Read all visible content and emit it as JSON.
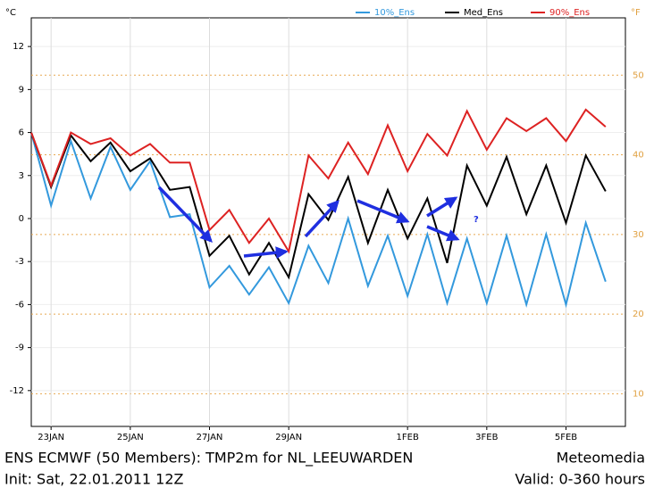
{
  "chart_data": {
    "type": "line",
    "title": "ENS ECMWF (50 Members): TMP2m for NL_LEEUWARDEN",
    "source": "Meteomedia",
    "init": "Init: Sat, 22.01.2011 12Z",
    "valid": "Valid: 0-360 hours",
    "y_label": "°C",
    "y2_label": "°F",
    "annotation": "?",
    "x": [
      0,
      12,
      24,
      36,
      48,
      60,
      72,
      84,
      96,
      108,
      120,
      132,
      144,
      156,
      168,
      180,
      192,
      204,
      216,
      228,
      240,
      252,
      264,
      276,
      288,
      300,
      312,
      324,
      336,
      348
    ],
    "xlim": [
      0,
      360
    ],
    "xticks": [
      {
        "value": 12,
        "label": "23JAN"
      },
      {
        "value": 60,
        "label": "25JAN"
      },
      {
        "value": 108,
        "label": "27JAN"
      },
      {
        "value": 156,
        "label": "29JAN"
      },
      {
        "value": 228,
        "label": "1FEB"
      },
      {
        "value": 276,
        "label": "3FEB"
      },
      {
        "value": 324,
        "label": "5FEB"
      }
    ],
    "ylim": [
      -14.5,
      14
    ],
    "yticks": [
      -12,
      -9,
      -6,
      -3,
      0,
      3,
      6,
      9,
      12
    ],
    "y2lim": [
      5.9,
      57.2
    ],
    "y2ticks": [
      10,
      20,
      30,
      40,
      50
    ],
    "grid": true,
    "series": [
      {
        "name": "10%_Ens",
        "color": "#3399dd",
        "values": [
          6.0,
          0.9,
          5.4,
          1.4,
          5.0,
          2.0,
          4.0,
          0.1,
          0.3,
          -4.8,
          -3.3,
          -5.3,
          -3.4,
          -5.9,
          -1.9,
          -4.5,
          0.0,
          -4.7,
          -1.2,
          -5.4,
          -1.1,
          -5.9,
          -1.4,
          -5.9,
          -1.2,
          -6.0,
          -1.1,
          -6.0,
          -0.3,
          -4.4
        ]
      },
      {
        "name": "Med_Ens",
        "color": "#000000",
        "values": [
          6.0,
          2.2,
          5.8,
          4.0,
          5.3,
          3.3,
          4.2,
          2.0,
          2.2,
          -2.6,
          -1.2,
          -3.9,
          -1.7,
          -4.1,
          1.7,
          -0.1,
          2.9,
          -1.7,
          2.0,
          -1.4,
          1.4,
          -3.1,
          3.7,
          0.9,
          4.3,
          0.3,
          3.7,
          -0.3,
          4.4,
          1.9
        ]
      },
      {
        "name": "90%_Ens",
        "color": "#dd2222",
        "values": [
          6.0,
          2.3,
          6.0,
          5.2,
          5.6,
          4.4,
          5.2,
          3.9,
          3.9,
          -0.8,
          0.6,
          -1.7,
          0.0,
          -2.3,
          4.4,
          2.8,
          5.3,
          3.1,
          6.5,
          3.3,
          5.9,
          4.4,
          7.5,
          4.8,
          7.0,
          6.1,
          7.0,
          5.4,
          7.6,
          6.4
        ]
      }
    ]
  }
}
